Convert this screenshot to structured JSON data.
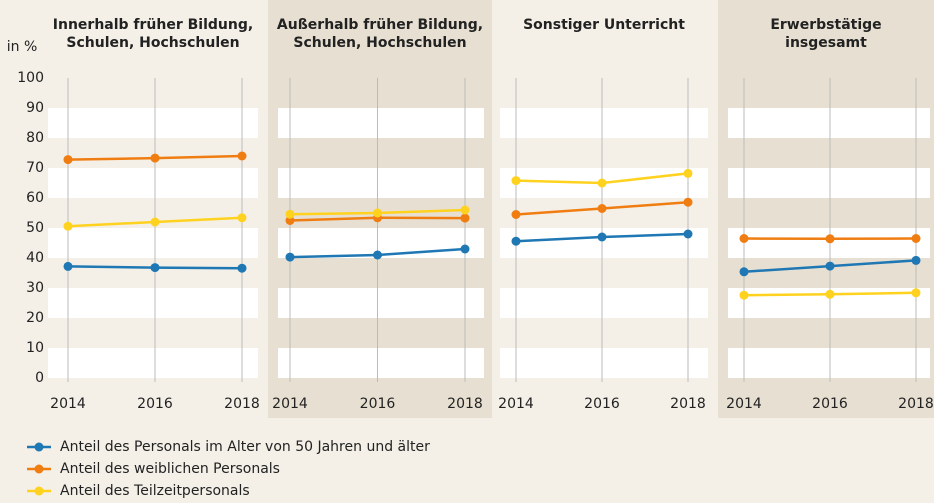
{
  "chart_data": [
    {
      "type": "line",
      "title": "Innerhalb früher Bildung,\nSchulen, Hochschulen",
      "ylabel": "in %",
      "x": [
        2014,
        2016,
        2018
      ],
      "ylim": [
        0,
        100
      ],
      "yticks": [
        0,
        10,
        20,
        30,
        40,
        50,
        60,
        70,
        80,
        90,
        100
      ],
      "series": [
        {
          "name": "Anteil des Personals im Alter von 50 Jahren und älter",
          "color": "#1f77b4",
          "values": [
            37.2,
            36.8,
            36.6
          ]
        },
        {
          "name": "Anteil des weiblichen Personals",
          "color": "#f07d12",
          "values": [
            72.8,
            73.3,
            74.0
          ]
        },
        {
          "name": "Anteil des Teilzeitpersonals",
          "color": "#ffd21f",
          "values": [
            50.6,
            52.0,
            53.4
          ]
        }
      ]
    },
    {
      "type": "line",
      "title": "Außerhalb früher Bildung,\nSchulen, Hochschulen",
      "x": [
        2014,
        2016,
        2018
      ],
      "ylim": [
        0,
        100
      ],
      "series": [
        {
          "color": "#1f77b4",
          "values": [
            40.3,
            41.0,
            43.0
          ]
        },
        {
          "color": "#f07d12",
          "values": [
            52.5,
            53.4,
            53.3
          ]
        },
        {
          "color": "#ffd21f",
          "values": [
            54.6,
            55.0,
            56.0
          ]
        }
      ]
    },
    {
      "type": "line",
      "title": "Sonstiger Unterricht",
      "x": [
        2014,
        2016,
        2018
      ],
      "ylim": [
        0,
        100
      ],
      "series": [
        {
          "color": "#1f77b4",
          "values": [
            45.6,
            47.0,
            48.0
          ]
        },
        {
          "color": "#f07d12",
          "values": [
            54.5,
            56.5,
            58.6
          ]
        },
        {
          "color": "#ffd21f",
          "values": [
            65.8,
            65.0,
            68.2
          ]
        }
      ]
    },
    {
      "type": "line",
      "title": "Erwerbstätige\ninsgesamt",
      "x": [
        2014,
        2016,
        2018
      ],
      "ylim": [
        0,
        100
      ],
      "series": [
        {
          "color": "#1f77b4",
          "values": [
            35.4,
            37.3,
            39.2
          ]
        },
        {
          "color": "#f07d12",
          "values": [
            46.5,
            46.4,
            46.5
          ]
        },
        {
          "color": "#ffd21f",
          "values": [
            27.6,
            27.9,
            28.4
          ]
        }
      ]
    }
  ]
}
